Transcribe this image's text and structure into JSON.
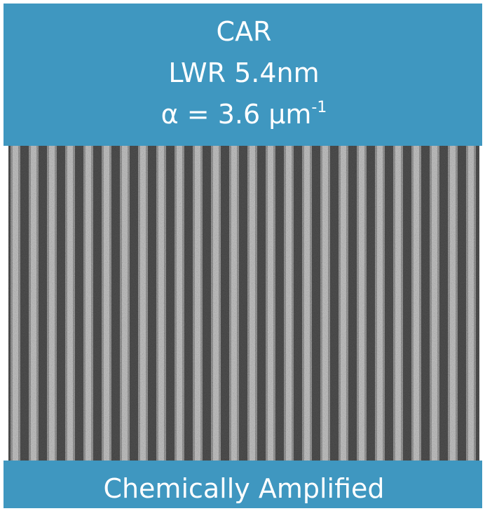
{
  "header": {
    "lines": [
      "CAR",
      "LWR 5.4nm"
    ],
    "alpha": "α = 3.6 μm",
    "superscript": "-1"
  },
  "footer": {
    "label": "Chemically Amplified"
  }
}
